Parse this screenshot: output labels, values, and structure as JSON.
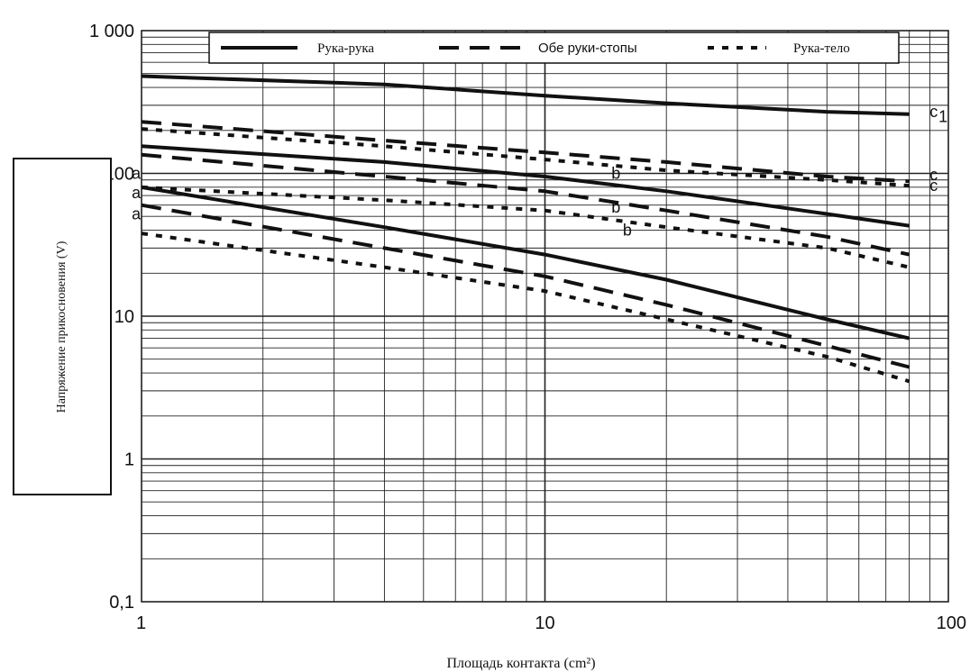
{
  "chart_data": {
    "type": "line",
    "title": "",
    "xlabel": "Площадь контакта (cm²)",
    "ylabel": "Напряжение прикосновения (V)",
    "x_scale": "log",
    "y_scale": "log",
    "xlim": [
      1,
      100
    ],
    "ylim": [
      0.1,
      1000
    ],
    "x_ticks": [
      "1",
      "10",
      "100"
    ],
    "y_ticks": [
      "0,1",
      "1",
      "10",
      "100",
      "1 000"
    ],
    "grid": true,
    "legend_position": "top",
    "legend": [
      {
        "label": "Рука-рука",
        "style": "solid"
      },
      {
        "label": "Обе руки-стопы",
        "style": "dashed"
      },
      {
        "label": "Рука-тело",
        "style": "dotted"
      }
    ],
    "curve_labels": [
      {
        "text": "a",
        "x": 0.97,
        "y": 100
      },
      {
        "text": "a",
        "x": 0.97,
        "y": 73
      },
      {
        "text": "a",
        "x": 0.97,
        "y": 52
      },
      {
        "text": "b",
        "x": 15,
        "y": 100
      },
      {
        "text": "b",
        "x": 15,
        "y": 58
      },
      {
        "text": "b",
        "x": 16,
        "y": 40
      },
      {
        "text": "c",
        "x": 92,
        "y": 270
      },
      {
        "text": "1",
        "x": 97,
        "y": 250
      },
      {
        "text": "c",
        "x": 92,
        "y": 98
      },
      {
        "text": "c",
        "x": 92,
        "y": 82
      }
    ],
    "series": [
      {
        "name": "Рука-рука",
        "style": "solid",
        "x": [
          1,
          4,
          10,
          20,
          50,
          80
        ],
        "y": [
          480,
          420,
          350,
          310,
          270,
          260
        ]
      },
      {
        "name": "Обе руки-стопы",
        "style": "dashed",
        "x": [
          1,
          4,
          10,
          20,
          50,
          80
        ],
        "y": [
          230,
          170,
          140,
          120,
          95,
          88
        ]
      },
      {
        "name": "Рука-тело",
        "style": "dotted",
        "x": [
          1,
          4,
          10,
          20,
          50,
          80
        ],
        "y": [
          205,
          155,
          125,
          105,
          90,
          82
        ]
      },
      {
        "name": "Рука-рука",
        "style": "solid",
        "x": [
          1,
          4,
          10,
          20,
          50,
          80
        ],
        "y": [
          155,
          120,
          95,
          75,
          52,
          43
        ]
      },
      {
        "name": "Обе руки-стопы",
        "style": "dashed",
        "x": [
          1,
          4,
          10,
          20,
          50,
          80
        ],
        "y": [
          135,
          95,
          75,
          55,
          36,
          27
        ]
      },
      {
        "name": "Рука-тело",
        "style": "dotted",
        "x": [
          1,
          4,
          10,
          20,
          50,
          80
        ],
        "y": [
          80,
          65,
          55,
          42,
          30,
          22
        ]
      },
      {
        "name": "Рука-рука",
        "style": "solid",
        "x": [
          1,
          4,
          10,
          20,
          50,
          80
        ],
        "y": [
          80,
          42,
          27,
          18,
          9.5,
          7
        ]
      },
      {
        "name": "Обе руки-стопы",
        "style": "dashed",
        "x": [
          1,
          4,
          10,
          20,
          50,
          80
        ],
        "y": [
          60,
          30,
          19,
          12,
          6.2,
          4.4
        ]
      },
      {
        "name": "Рука-тело",
        "style": "dotted",
        "x": [
          1,
          4,
          10,
          20,
          50,
          80
        ],
        "y": [
          38,
          22,
          15,
          9.5,
          5.2,
          3.5
        ]
      }
    ]
  }
}
